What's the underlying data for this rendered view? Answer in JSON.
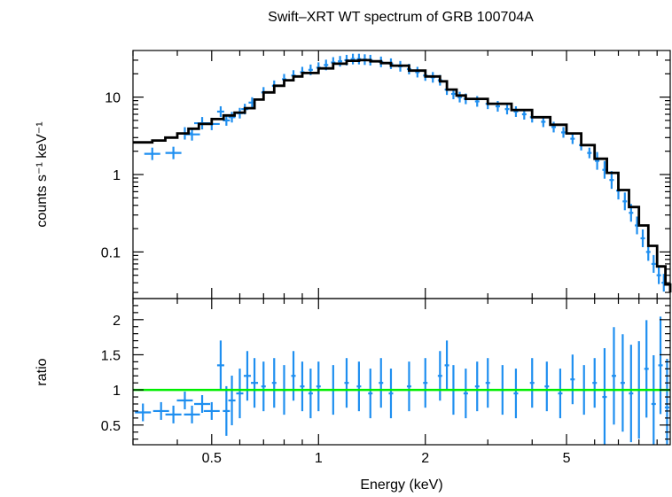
{
  "chart_data": [
    {
      "type": "scatter",
      "title": "Swift–XRT WT spectrum of GRB 100704A",
      "xlabel": "",
      "ylabel": "counts s⁻¹ keV⁻¹",
      "x_scale": "log",
      "y_scale": "log",
      "xlim": [
        0.3,
        9.8
      ],
      "ylim": [
        0.025,
        40
      ],
      "yticks": [
        0.1,
        1,
        10
      ],
      "ytick_labels": [
        "0.1",
        "1",
        "10"
      ],
      "grid": false,
      "data_color": "#1f8ff0",
      "model_color": "#000000",
      "series": [
        {
          "role": "data",
          "points": [
            {
              "x": 0.34,
              "y": 1.85
            },
            {
              "x": 0.39,
              "y": 1.9
            },
            {
              "x": 0.42,
              "y": 3.4
            },
            {
              "x": 0.44,
              "y": 3.3
            },
            {
              "x": 0.47,
              "y": 4.6
            },
            {
              "x": 0.5,
              "y": 4.5
            },
            {
              "x": 0.53,
              "y": 6.5
            },
            {
              "x": 0.55,
              "y": 5.0
            },
            {
              "x": 0.57,
              "y": 5.5
            },
            {
              "x": 0.6,
              "y": 6.2
            },
            {
              "x": 0.62,
              "y": 7.0
            },
            {
              "x": 0.65,
              "y": 8.5
            },
            {
              "x": 0.7,
              "y": 11.5
            },
            {
              "x": 0.75,
              "y": 14
            },
            {
              "x": 0.8,
              "y": 17
            },
            {
              "x": 0.85,
              "y": 19
            },
            {
              "x": 0.9,
              "y": 21
            },
            {
              "x": 0.95,
              "y": 22.5
            },
            {
              "x": 1.0,
              "y": 24
            },
            {
              "x": 1.05,
              "y": 26
            },
            {
              "x": 1.1,
              "y": 28
            },
            {
              "x": 1.15,
              "y": 29
            },
            {
              "x": 1.2,
              "y": 30
            },
            {
              "x": 1.25,
              "y": 31
            },
            {
              "x": 1.3,
              "y": 31
            },
            {
              "x": 1.35,
              "y": 30.5
            },
            {
              "x": 1.4,
              "y": 30
            },
            {
              "x": 1.5,
              "y": 28.5
            },
            {
              "x": 1.6,
              "y": 27
            },
            {
              "x": 1.7,
              "y": 25
            },
            {
              "x": 1.8,
              "y": 23
            },
            {
              "x": 1.9,
              "y": 21
            },
            {
              "x": 2.0,
              "y": 19
            },
            {
              "x": 2.1,
              "y": 18
            },
            {
              "x": 2.2,
              "y": 16.5
            },
            {
              "x": 2.3,
              "y": 12.5
            },
            {
              "x": 2.4,
              "y": 11
            },
            {
              "x": 2.5,
              "y": 10
            },
            {
              "x": 2.6,
              "y": 9.5
            },
            {
              "x": 2.8,
              "y": 8.8
            },
            {
              "x": 3.0,
              "y": 8.2
            },
            {
              "x": 3.2,
              "y": 7.6
            },
            {
              "x": 3.4,
              "y": 7.0
            },
            {
              "x": 3.6,
              "y": 6.5
            },
            {
              "x": 3.8,
              "y": 6.0
            },
            {
              "x": 4.0,
              "y": 5.5
            },
            {
              "x": 4.3,
              "y": 4.8
            },
            {
              "x": 4.6,
              "y": 4.1
            },
            {
              "x": 4.9,
              "y": 3.5
            },
            {
              "x": 5.2,
              "y": 2.9
            },
            {
              "x": 5.5,
              "y": 2.4
            },
            {
              "x": 5.8,
              "y": 1.9
            },
            {
              "x": 6.1,
              "y": 1.5
            },
            {
              "x": 6.4,
              "y": 1.15
            },
            {
              "x": 6.7,
              "y": 0.85
            },
            {
              "x": 7.0,
              "y": 0.62
            },
            {
              "x": 7.3,
              "y": 0.45
            },
            {
              "x": 7.6,
              "y": 0.32
            },
            {
              "x": 7.9,
              "y": 0.22
            },
            {
              "x": 8.2,
              "y": 0.15
            },
            {
              "x": 8.5,
              "y": 0.1
            },
            {
              "x": 8.8,
              "y": 0.07
            },
            {
              "x": 9.1,
              "y": 0.05
            },
            {
              "x": 9.4,
              "y": 0.04
            }
          ]
        },
        {
          "role": "model",
          "points": [
            {
              "x": 0.3,
              "y": 2.6
            },
            {
              "x": 0.34,
              "y": 2.75
            },
            {
              "x": 0.37,
              "y": 3.0
            },
            {
              "x": 0.4,
              "y": 3.4
            },
            {
              "x": 0.43,
              "y": 3.9
            },
            {
              "x": 0.46,
              "y": 4.5
            },
            {
              "x": 0.5,
              "y": 5.2
            },
            {
              "x": 0.54,
              "y": 5.8
            },
            {
              "x": 0.58,
              "y": 6.3
            },
            {
              "x": 0.62,
              "y": 7.2
            },
            {
              "x": 0.66,
              "y": 9.3
            },
            {
              "x": 0.7,
              "y": 11.5
            },
            {
              "x": 0.75,
              "y": 14
            },
            {
              "x": 0.8,
              "y": 16.5
            },
            {
              "x": 0.85,
              "y": 18.5
            },
            {
              "x": 0.9,
              "y": 20.5
            },
            {
              "x": 1.0,
              "y": 23.5
            },
            {
              "x": 1.1,
              "y": 27
            },
            {
              "x": 1.2,
              "y": 29.5
            },
            {
              "x": 1.3,
              "y": 30
            },
            {
              "x": 1.4,
              "y": 29
            },
            {
              "x": 1.5,
              "y": 27.5
            },
            {
              "x": 1.6,
              "y": 25.5
            },
            {
              "x": 1.8,
              "y": 22
            },
            {
              "x": 2.0,
              "y": 18.5
            },
            {
              "x": 2.2,
              "y": 16
            },
            {
              "x": 2.3,
              "y": 12.5
            },
            {
              "x": 2.45,
              "y": 10.5
            },
            {
              "x": 2.6,
              "y": 9.5
            },
            {
              "x": 3.0,
              "y": 8.2
            },
            {
              "x": 3.5,
              "y": 6.8
            },
            {
              "x": 4.0,
              "y": 5.5
            },
            {
              "x": 4.5,
              "y": 4.4
            },
            {
              "x": 5.0,
              "y": 3.4
            },
            {
              "x": 5.5,
              "y": 2.4
            },
            {
              "x": 6.0,
              "y": 1.6
            },
            {
              "x": 6.5,
              "y": 1.05
            },
            {
              "x": 7.0,
              "y": 0.63
            },
            {
              "x": 7.5,
              "y": 0.38
            },
            {
              "x": 8.0,
              "y": 0.22
            },
            {
              "x": 8.5,
              "y": 0.12
            },
            {
              "x": 9.0,
              "y": 0.065
            },
            {
              "x": 9.5,
              "y": 0.038
            },
            {
              "x": 9.8,
              "y": 0.03
            }
          ]
        }
      ]
    },
    {
      "type": "scatter",
      "xlabel": "Energy (keV)",
      "ylabel": "ratio",
      "x_scale": "log",
      "xlim": [
        0.3,
        9.8
      ],
      "ylim": [
        0.22,
        2.3
      ],
      "xticks": [
        0.5,
        1,
        2,
        5
      ],
      "xtick_labels": [
        "0.5",
        "1",
        "2",
        "5"
      ],
      "yticks": [
        0.5,
        1,
        1.5,
        2
      ],
      "ytick_labels": [
        "0.5",
        "1",
        "1.5",
        "2"
      ],
      "reference_line": {
        "y": 1,
        "color": "#00ee00"
      },
      "data_color": "#1f8ff0",
      "series": [
        {
          "role": "data",
          "points": [
            {
              "x": 0.32,
              "y": 0.68
            },
            {
              "x": 0.36,
              "y": 0.7
            },
            {
              "x": 0.39,
              "y": 0.65
            },
            {
              "x": 0.42,
              "y": 0.85
            },
            {
              "x": 0.44,
              "y": 0.65
            },
            {
              "x": 0.47,
              "y": 0.8
            },
            {
              "x": 0.5,
              "y": 0.7
            },
            {
              "x": 0.53,
              "y": 1.35
            },
            {
              "x": 0.55,
              "y": 0.7
            },
            {
              "x": 0.57,
              "y": 0.85
            },
            {
              "x": 0.6,
              "y": 0.95
            },
            {
              "x": 0.63,
              "y": 1.2
            },
            {
              "x": 0.66,
              "y": 1.1
            },
            {
              "x": 0.7,
              "y": 1.05
            },
            {
              "x": 0.75,
              "y": 1.1
            },
            {
              "x": 0.8,
              "y": 1.0
            },
            {
              "x": 0.85,
              "y": 1.2
            },
            {
              "x": 0.9,
              "y": 1.05
            },
            {
              "x": 0.95,
              "y": 0.95
            },
            {
              "x": 1.0,
              "y": 1.05
            },
            {
              "x": 1.1,
              "y": 1.0
            },
            {
              "x": 1.2,
              "y": 1.1
            },
            {
              "x": 1.3,
              "y": 1.05
            },
            {
              "x": 1.4,
              "y": 0.95
            },
            {
              "x": 1.5,
              "y": 1.1
            },
            {
              "x": 1.6,
              "y": 0.95
            },
            {
              "x": 1.8,
              "y": 1.05
            },
            {
              "x": 2.0,
              "y": 1.1
            },
            {
              "x": 2.2,
              "y": 1.2
            },
            {
              "x": 2.3,
              "y": 1.35
            },
            {
              "x": 2.4,
              "y": 1.0
            },
            {
              "x": 2.6,
              "y": 0.95
            },
            {
              "x": 2.8,
              "y": 1.05
            },
            {
              "x": 3.0,
              "y": 1.1
            },
            {
              "x": 3.3,
              "y": 1.0
            },
            {
              "x": 3.6,
              "y": 0.95
            },
            {
              "x": 4.0,
              "y": 1.1
            },
            {
              "x": 4.4,
              "y": 1.05
            },
            {
              "x": 4.8,
              "y": 0.95
            },
            {
              "x": 5.2,
              "y": 1.15
            },
            {
              "x": 5.6,
              "y": 1.0
            },
            {
              "x": 6.0,
              "y": 1.1
            },
            {
              "x": 6.4,
              "y": 0.9
            },
            {
              "x": 6.8,
              "y": 1.2
            },
            {
              "x": 7.2,
              "y": 1.1
            },
            {
              "x": 7.6,
              "y": 0.95
            },
            {
              "x": 8.0,
              "y": 1.0
            },
            {
              "x": 8.4,
              "y": 1.3
            },
            {
              "x": 8.8,
              "y": 0.8
            },
            {
              "x": 9.2,
              "y": 1.35
            },
            {
              "x": 9.6,
              "y": 0.75
            }
          ]
        }
      ]
    }
  ]
}
